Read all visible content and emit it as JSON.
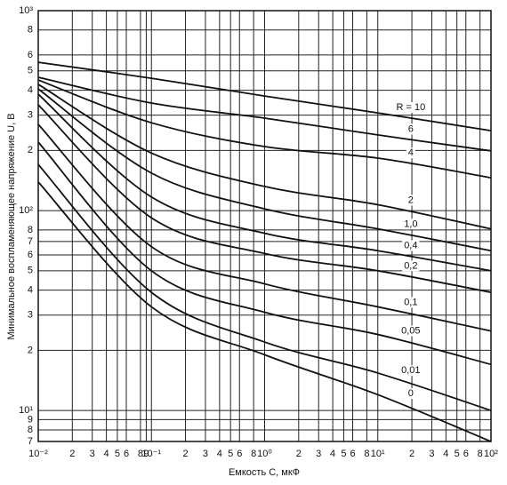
{
  "chart_data": {
    "type": "line",
    "log_x": true,
    "log_y": true,
    "grid": true,
    "xlabel": "Емкость C, мкФ",
    "ylabel": "Минимальное воспламеняющее напряжение U, В",
    "x": [
      0.01,
      0.1,
      1,
      10,
      100
    ],
    "xlim": [
      0.01,
      100
    ],
    "ylim": [
      7,
      1000
    ],
    "xticks": [
      {
        "value": 0.01,
        "label": "10⁻²"
      },
      {
        "value": 0.02,
        "label": "2"
      },
      {
        "value": 0.03,
        "label": "3"
      },
      {
        "value": 0.04,
        "label": "4"
      },
      {
        "value": 0.05,
        "label": "5"
      },
      {
        "value": 0.06,
        "label": "6"
      },
      {
        "value": 0.08,
        "label": "8"
      },
      {
        "value": 0.09,
        "label": "9"
      },
      {
        "value": 0.1,
        "label": "10⁻¹"
      },
      {
        "value": 0.2,
        "label": "2"
      },
      {
        "value": 0.3,
        "label": "3"
      },
      {
        "value": 0.4,
        "label": "4"
      },
      {
        "value": 0.5,
        "label": "5"
      },
      {
        "value": 0.6,
        "label": "6"
      },
      {
        "value": 0.8,
        "label": "8"
      },
      {
        "value": 1,
        "label": "10⁰"
      },
      {
        "value": 2,
        "label": "2"
      },
      {
        "value": 3,
        "label": "3"
      },
      {
        "value": 4,
        "label": "4"
      },
      {
        "value": 5,
        "label": "5"
      },
      {
        "value": 6,
        "label": "6"
      },
      {
        "value": 8,
        "label": "8"
      },
      {
        "value": 10,
        "label": "10¹"
      },
      {
        "value": 20,
        "label": "2"
      },
      {
        "value": 30,
        "label": "3"
      },
      {
        "value": 40,
        "label": "4"
      },
      {
        "value": 50,
        "label": "5"
      },
      {
        "value": 60,
        "label": "6"
      },
      {
        "value": 80,
        "label": "8"
      },
      {
        "value": 100,
        "label": "10²"
      }
    ],
    "yticks": [
      {
        "value": 1000,
        "label": "10³"
      },
      {
        "value": 800,
        "label": "8"
      },
      {
        "value": 600,
        "label": "6"
      },
      {
        "value": 500,
        "label": "5"
      },
      {
        "value": 400,
        "label": "4"
      },
      {
        "value": 300,
        "label": "3"
      },
      {
        "value": 200,
        "label": "2"
      },
      {
        "value": 100,
        "label": "10²"
      },
      {
        "value": 80,
        "label": "8"
      },
      {
        "value": 70,
        "label": "7"
      },
      {
        "value": 60,
        "label": "6"
      },
      {
        "value": 50,
        "label": "5"
      },
      {
        "value": 40,
        "label": "4"
      },
      {
        "value": 30,
        "label": "3"
      },
      {
        "value": 20,
        "label": "2"
      },
      {
        "value": 10,
        "label": "10¹"
      },
      9,
      8,
      7
    ],
    "series": [
      {
        "name": "R = 10",
        "color": "#111111",
        "values": [
          552,
          459,
          374,
          308,
          251
        ]
      },
      {
        "name": "6",
        "color": "#111111",
        "values": [
          464,
          345,
          290,
          239,
          199
        ]
      },
      {
        "name": "4",
        "color": "#111111",
        "values": [
          450,
          275,
          209,
          183,
          146
        ]
      },
      {
        "name": "2",
        "color": "#111111",
        "values": [
          428,
          194,
          132,
          107,
          81
        ]
      },
      {
        "name": "1,0",
        "color": "#111111",
        "values": [
          406,
          154,
          102,
          81,
          63
        ]
      },
      {
        "name": "0,4",
        "color": "#111111",
        "values": [
          382,
          117,
          77,
          63,
          50
        ]
      },
      {
        "name": "0,2",
        "color": "#111111",
        "values": [
          338,
          92,
          61,
          50,
          39
        ]
      },
      {
        "name": "0,1",
        "color": "#111111",
        "values": [
          270,
          66,
          43,
          33,
          25
        ]
      },
      {
        "name": "0,05",
        "color": "#111111",
        "values": [
          220,
          50,
          31,
          24,
          17
        ]
      },
      {
        "name": "0,01",
        "color": "#111111",
        "values": [
          170,
          39,
          22,
          15.4,
          10
        ]
      },
      {
        "name": "0",
        "color": "#111111",
        "values": [
          139,
          33,
          19,
          12,
          7
        ]
      }
    ]
  }
}
